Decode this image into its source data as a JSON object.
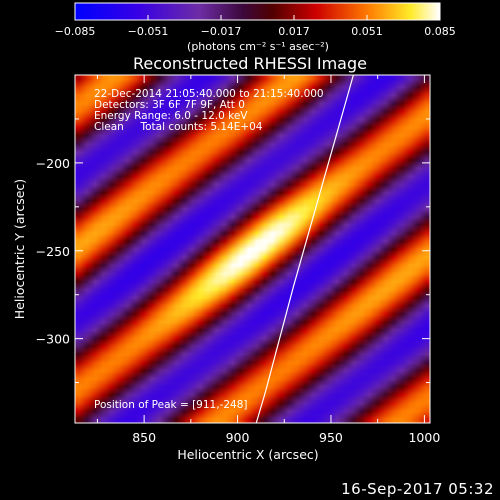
{
  "chart_data": {
    "type": "heatmap",
    "title": "Reconstructed RHESSI Image",
    "xlabel": "Heliocentric X (arcsec)",
    "ylabel": "Heliocentric Y (arcsec)",
    "xlim": [
      813,
      1003
    ],
    "ylim": [
      -348,
      -150
    ],
    "xticks": [
      850,
      900,
      950,
      1000
    ],
    "yticks": [
      -200,
      -250,
      -300
    ],
    "xtick_labels": [
      "850",
      "900",
      "950",
      "1000"
    ],
    "ytick_labels": [
      "−200",
      "−250",
      "−300"
    ],
    "colorbar": {
      "range": [
        -0.085,
        0.085
      ],
      "ticks": [
        -0.085,
        -0.051,
        -0.017,
        0.017,
        0.051,
        0.085
      ],
      "tick_labels": [
        "−0.085",
        "−0.051",
        "−0.017",
        "0.017",
        "0.051",
        "0.085"
      ],
      "label": "(photons cm⁻² s⁻¹ asec⁻²)",
      "colormap": "rhessi-blue-purple-red-yellow-white"
    },
    "annotations": [
      "22-Dec-2014 21:05:40.000 to 21:15:40.000",
      "Detectors: 3F 6F 7F 9F, Att 0",
      "Energy Range: 6.0 - 12.0 keV",
      "Clean     Total counts: 5.14E+04",
      "Position of Peak = [911,-248]"
    ],
    "peak": {
      "x": 911,
      "y": -248
    },
    "fringe_angle_deg": 40,
    "fringe_period_arcsec": 62,
    "limb_curve": [
      [
        962,
        -150
      ],
      [
        946,
        -210
      ],
      [
        930,
        -270
      ],
      [
        915,
        -330
      ],
      [
        910,
        -348
      ]
    ]
  },
  "footer": {
    "timestamp": "16-Sep-2017 05:32"
  }
}
